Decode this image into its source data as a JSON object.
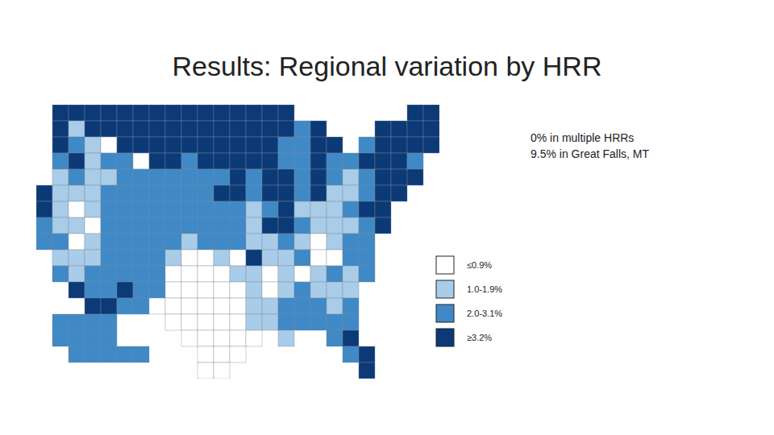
{
  "chart_data": {
    "type": "choropleth",
    "title": "Results: Regional variation by HRR",
    "annotations": [
      "0% in multiple HRRs",
      "9.5% in Great Falls, MT"
    ],
    "legend": "right",
    "classes": [
      {
        "label": "≤0.9%",
        "color": "#ffffff"
      },
      {
        "label": "1.0-1.9%",
        "color": "#a9cce9"
      },
      {
        "label": "2.0-3.1%",
        "color": "#3f89c6"
      },
      {
        "label": "≥3.2%",
        "color": "#0b3a76"
      }
    ],
    "cells": [
      [
        null,
        3,
        3,
        3,
        3,
        3,
        3,
        3,
        3,
        3,
        3,
        3,
        3,
        3,
        3,
        3,
        null,
        null,
        null,
        null,
        null,
        null,
        null,
        3,
        3
      ],
      [
        null,
        3,
        1,
        3,
        3,
        3,
        3,
        3,
        3,
        3,
        3,
        3,
        3,
        3,
        3,
        3,
        2,
        3,
        null,
        null,
        null,
        3,
        3,
        3,
        3
      ],
      [
        null,
        3,
        2,
        1,
        0,
        3,
        3,
        3,
        3,
        3,
        3,
        3,
        3,
        3,
        3,
        2,
        2,
        3,
        3,
        null,
        2,
        3,
        3,
        3,
        3
      ],
      [
        null,
        2,
        3,
        1,
        2,
        2,
        0,
        3,
        3,
        2,
        3,
        3,
        3,
        3,
        3,
        2,
        2,
        3,
        2,
        2,
        3,
        3,
        3,
        2,
        null
      ],
      [
        null,
        1,
        2,
        1,
        1,
        2,
        2,
        2,
        2,
        2,
        2,
        2,
        3,
        2,
        3,
        3,
        2,
        3,
        2,
        1,
        2,
        3,
        3,
        3,
        null
      ],
      [
        3,
        1,
        1,
        1,
        2,
        2,
        2,
        2,
        2,
        2,
        2,
        3,
        3,
        2,
        3,
        3,
        2,
        3,
        1,
        1,
        2,
        3,
        3,
        null,
        null
      ],
      [
        3,
        1,
        0,
        1,
        2,
        2,
        2,
        2,
        2,
        2,
        2,
        2,
        2,
        1,
        2,
        3,
        1,
        1,
        1,
        2,
        3,
        3,
        null,
        null,
        null
      ],
      [
        2,
        1,
        1,
        0,
        2,
        2,
        2,
        2,
        2,
        2,
        2,
        2,
        2,
        1,
        3,
        3,
        2,
        1,
        1,
        1,
        2,
        3,
        null,
        null,
        null
      ],
      [
        2,
        2,
        0,
        1,
        2,
        2,
        2,
        2,
        2,
        1,
        2,
        2,
        2,
        1,
        1,
        2,
        1,
        0,
        1,
        2,
        2,
        null,
        null,
        null,
        null
      ],
      [
        null,
        1,
        1,
        1,
        2,
        2,
        2,
        2,
        1,
        0,
        0,
        1,
        0,
        3,
        1,
        1,
        2,
        0,
        0,
        2,
        2,
        null,
        null,
        null,
        null
      ],
      [
        null,
        2,
        1,
        2,
        2,
        2,
        2,
        2,
        0,
        0,
        0,
        0,
        1,
        1,
        0,
        1,
        0,
        1,
        2,
        1,
        2,
        null,
        null,
        null,
        null
      ],
      [
        null,
        null,
        3,
        2,
        2,
        3,
        2,
        2,
        0,
        0,
        0,
        0,
        0,
        1,
        0,
        1,
        2,
        1,
        1,
        1,
        null,
        null,
        null,
        null,
        null
      ],
      [
        null,
        null,
        null,
        3,
        3,
        2,
        2,
        0,
        0,
        0,
        0,
        0,
        0,
        1,
        1,
        2,
        2,
        2,
        1,
        2,
        null,
        null,
        null,
        null,
        null
      ],
      [
        null,
        2,
        2,
        2,
        2,
        null,
        null,
        null,
        0,
        0,
        0,
        0,
        0,
        1,
        1,
        2,
        2,
        2,
        2,
        2,
        null,
        null,
        null,
        null,
        null
      ],
      [
        null,
        2,
        2,
        2,
        2,
        null,
        null,
        null,
        null,
        0,
        0,
        0,
        0,
        0,
        null,
        1,
        null,
        null,
        2,
        3,
        null,
        null,
        null,
        null,
        null
      ],
      [
        null,
        null,
        2,
        2,
        2,
        2,
        2,
        null,
        null,
        null,
        0,
        0,
        0,
        null,
        null,
        null,
        null,
        null,
        null,
        2,
        3,
        null,
        null,
        null,
        null
      ],
      [
        null,
        null,
        null,
        null,
        null,
        null,
        null,
        null,
        null,
        null,
        0,
        0,
        null,
        null,
        null,
        null,
        null,
        null,
        null,
        null,
        3,
        null,
        null,
        null,
        null
      ]
    ]
  }
}
